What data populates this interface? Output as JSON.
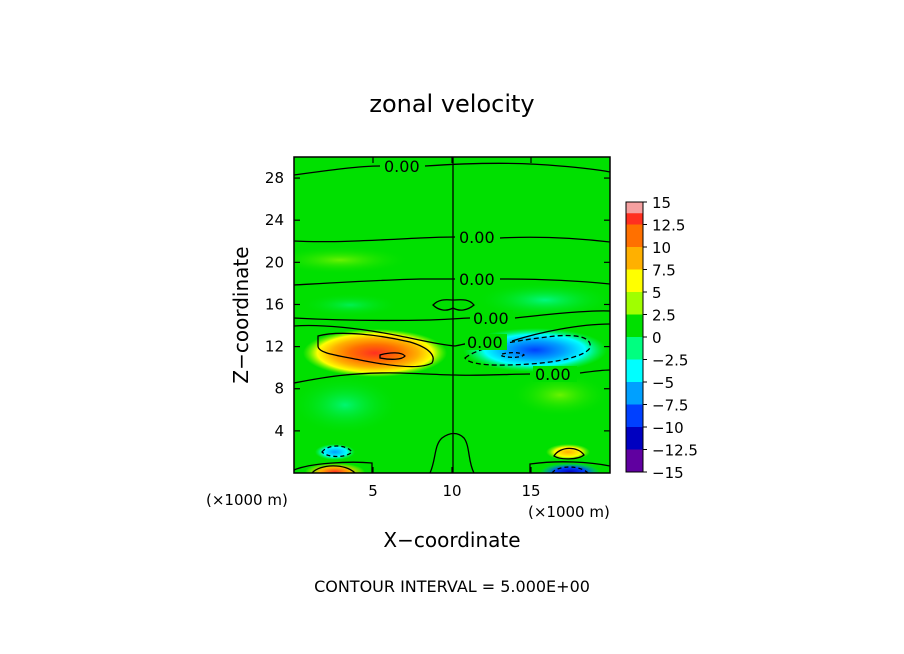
{
  "chart_data": {
    "type": "heatmap",
    "title": "zonal velocity",
    "xlabel": "X−coordinate",
    "ylabel": "Z−coordinate",
    "x_unit_note_left": "(×1000 m)",
    "x_unit_note_right": "(×1000 m)",
    "footer": "CONTOUR INTERVAL = 5.000E+00",
    "xlim": [
      0,
      20
    ],
    "ylim": [
      0,
      30
    ],
    "x_ticks": [
      "5",
      "10",
      "15"
    ],
    "y_ticks": [
      "4",
      "8",
      "12",
      "16",
      "20",
      "24",
      "28"
    ],
    "colorbar": {
      "range": [
        -15,
        15
      ],
      "labels": [
        "15",
        "12.5",
        "10",
        "7.5",
        "5",
        "2.5",
        "0",
        "−2.5",
        "−5",
        "−7.5",
        "−10",
        "−12.5",
        "−15"
      ],
      "colors": [
        "#f5a0a0",
        "#ff3020",
        "#ff7000",
        "#ffb000",
        "#ffff00",
        "#a0ff00",
        "#00e000",
        "#00ff80",
        "#00ffff",
        "#00a0ff",
        "#0040ff",
        "#0000c0",
        "#6000a0"
      ]
    },
    "background_value": 0,
    "features": [
      {
        "name": "positive jet west",
        "x": 5,
        "z": 11.5,
        "value": 12.5
      },
      {
        "name": "negative jet east",
        "x": 15.5,
        "z": 11.5,
        "value": -10
      },
      {
        "name": "weak negative band",
        "x": 16,
        "z": 17,
        "value": -2.5
      },
      {
        "name": "weak negative lower west",
        "x": 3,
        "z": 6,
        "value": -2.5
      },
      {
        "name": "surface negative west",
        "x": 2,
        "z": 2,
        "value": -7.5
      },
      {
        "name": "surface positive west",
        "x": 2.5,
        "z": 0.3,
        "value": 10
      },
      {
        "name": "surface positive east",
        "x": 17.5,
        "z": 2,
        "value": 7.5
      },
      {
        "name": "surface negative east",
        "x": 17.5,
        "z": 0.3,
        "value": -12.5
      }
    ],
    "contour_labels": [
      "0.00",
      "0.00",
      "0.00",
      "0.00",
      "0.00",
      "0.00"
    ]
  }
}
